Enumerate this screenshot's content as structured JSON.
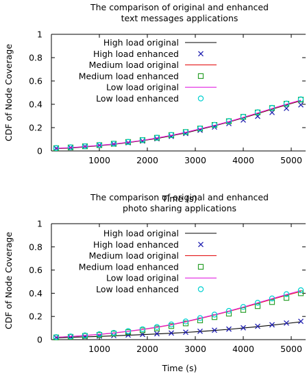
{
  "chart_data": [
    {
      "type": "line",
      "title": "The comparison of original and enhanced",
      "subtitle": "text messages applications",
      "xlabel": "Time (s)",
      "ylabel": "CDF of Node Coverage",
      "xlim": [
        0,
        5300
      ],
      "ylim": [
        0,
        1
      ],
      "xticks": [
        1000,
        2000,
        3000,
        4000,
        5000
      ],
      "yticks": [
        0,
        0.2,
        0.4,
        0.6,
        0.8,
        1
      ],
      "grid": false,
      "legend_position": "top-right",
      "x": [
        100,
        400,
        700,
        1000,
        1300,
        1600,
        1900,
        2200,
        2500,
        2800,
        3100,
        3400,
        3700,
        4000,
        4300,
        4600,
        4900,
        5200
      ],
      "series": [
        {
          "name": "High load original",
          "style": "line",
          "color": "#000000",
          "values": [
            0.02,
            0.025,
            0.035,
            0.045,
            0.057,
            0.072,
            0.088,
            0.107,
            0.13,
            0.155,
            0.185,
            0.215,
            0.248,
            0.283,
            0.32,
            0.358,
            0.395,
            0.43
          ]
        },
        {
          "name": "High load enhanced",
          "style": "marker",
          "marker": "x",
          "color": "#1f1fb0",
          "values": [
            0.022,
            0.028,
            0.038,
            0.048,
            0.058,
            0.07,
            0.085,
            0.105,
            0.125,
            0.15,
            0.178,
            0.205,
            0.235,
            0.265,
            0.297,
            0.33,
            0.365,
            0.395
          ]
        },
        {
          "name": "Medium load original",
          "style": "line",
          "color": "#e41a1c",
          "values": [
            0.022,
            0.027,
            0.037,
            0.047,
            0.059,
            0.074,
            0.09,
            0.11,
            0.133,
            0.158,
            0.188,
            0.218,
            0.25,
            0.286,
            0.323,
            0.361,
            0.398,
            0.433
          ]
        },
        {
          "name": "Medium load enhanced",
          "style": "marker",
          "marker": "square",
          "color": "#2ca02c",
          "values": [
            0.024,
            0.03,
            0.04,
            0.05,
            0.062,
            0.077,
            0.093,
            0.113,
            0.136,
            0.162,
            0.192,
            0.223,
            0.255,
            0.292,
            0.33,
            0.368,
            0.405,
            0.44
          ]
        },
        {
          "name": "Low load original",
          "style": "line",
          "color": "#e020e0",
          "values": [
            0.023,
            0.028,
            0.038,
            0.048,
            0.06,
            0.075,
            0.091,
            0.111,
            0.134,
            0.16,
            0.19,
            0.22,
            0.252,
            0.288,
            0.326,
            0.364,
            0.401,
            0.436
          ]
        },
        {
          "name": "Low load enhanced",
          "style": "marker",
          "marker": "circle",
          "color": "#00d0d0",
          "values": [
            0.025,
            0.031,
            0.041,
            0.051,
            0.063,
            0.078,
            0.094,
            0.114,
            0.137,
            0.163,
            0.193,
            0.224,
            0.257,
            0.294,
            0.332,
            0.37,
            0.407,
            0.443
          ]
        }
      ]
    },
    {
      "type": "line",
      "title": "The comparison of original and enhanced",
      "subtitle": "photo sharing applications",
      "xlabel": "Time (s)",
      "ylabel": "CDF of Node Coverage",
      "xlim": [
        0,
        5300
      ],
      "ylim": [
        0,
        1
      ],
      "xticks": [
        1000,
        2000,
        3000,
        4000,
        5000
      ],
      "yticks": [
        0,
        0.2,
        0.4,
        0.6,
        0.8,
        1
      ],
      "grid": false,
      "legend_position": "top-right",
      "x": [
        100,
        400,
        700,
        1000,
        1300,
        1600,
        1900,
        2200,
        2500,
        2800,
        3100,
        3400,
        3700,
        4000,
        4300,
        4600,
        4900,
        5200
      ],
      "series": [
        {
          "name": "High load original",
          "style": "line",
          "color": "#000000",
          "values": [
            0.015,
            0.02,
            0.024,
            0.028,
            0.033,
            0.038,
            0.043,
            0.049,
            0.055,
            0.062,
            0.07,
            0.079,
            0.089,
            0.1,
            0.112,
            0.125,
            0.139,
            0.153
          ]
        },
        {
          "name": "High load enhanced",
          "style": "marker",
          "marker": "x",
          "color": "#1f1fb0",
          "values": [
            0.018,
            0.022,
            0.026,
            0.03,
            0.035,
            0.04,
            0.045,
            0.051,
            0.057,
            0.064,
            0.072,
            0.081,
            0.091,
            0.102,
            0.115,
            0.128,
            0.143,
            0.158
          ]
        },
        {
          "name": "Medium load original",
          "style": "line",
          "color": "#e41a1c",
          "values": [
            0.02,
            0.026,
            0.035,
            0.045,
            0.057,
            0.071,
            0.087,
            0.106,
            0.128,
            0.153,
            0.182,
            0.212,
            0.243,
            0.277,
            0.312,
            0.348,
            0.383,
            0.415
          ]
        },
        {
          "name": "Medium load enhanced",
          "style": "marker",
          "marker": "square",
          "color": "#2ca02c",
          "values": [
            0.019,
            0.024,
            0.032,
            0.041,
            0.052,
            0.065,
            0.08,
            0.097,
            0.117,
            0.14,
            0.166,
            0.194,
            0.224,
            0.256,
            0.289,
            0.324,
            0.36,
            0.4
          ]
        },
        {
          "name": "Low load original",
          "style": "line",
          "color": "#e020e0",
          "values": [
            0.021,
            0.027,
            0.036,
            0.046,
            0.058,
            0.073,
            0.089,
            0.108,
            0.13,
            0.156,
            0.185,
            0.215,
            0.247,
            0.281,
            0.317,
            0.353,
            0.389,
            0.423
          ]
        },
        {
          "name": "Low load enhanced",
          "style": "marker",
          "marker": "circle",
          "color": "#00d0d0",
          "values": [
            0.022,
            0.028,
            0.037,
            0.047,
            0.059,
            0.074,
            0.09,
            0.109,
            0.131,
            0.157,
            0.186,
            0.216,
            0.248,
            0.282,
            0.318,
            0.355,
            0.392,
            0.426
          ]
        }
      ]
    }
  ]
}
